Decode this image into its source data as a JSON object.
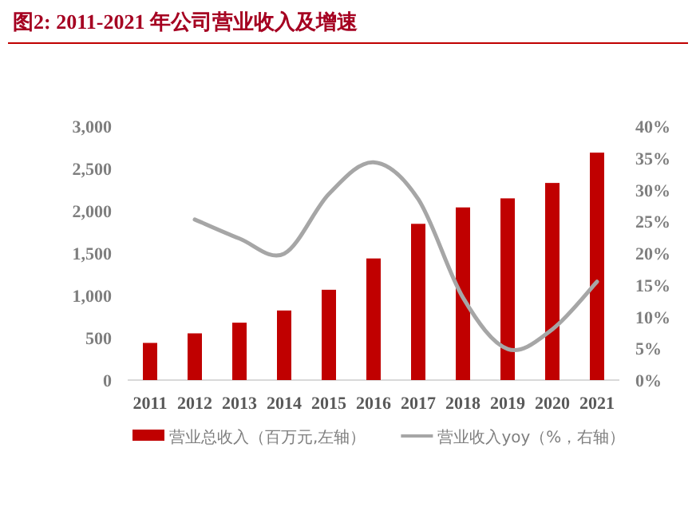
{
  "chart_data": {
    "type": "bar",
    "title": "图2:    2011-2021 年公司营业收入及增速",
    "categories": [
      "2011",
      "2012",
      "2013",
      "2014",
      "2015",
      "2016",
      "2017",
      "2018",
      "2019",
      "2020",
      "2021"
    ],
    "series": [
      {
        "name": "营业总收入（百万元,左轴）",
        "color": "#c00000",
        "values": [
          439,
          552,
          678,
          822,
          1067,
          1437,
          1846,
          2040,
          2147,
          2329,
          2687
        ]
      },
      {
        "name": "营业收入yoy（%，右轴）",
        "type": "line",
        "axis": "y2",
        "color": "#a6a6a6",
        "values": [
          null,
          25.3,
          22.3,
          19.9,
          29.3,
          34.3,
          28.5,
          13.0,
          4.9,
          8.0,
          15.5
        ]
      }
    ],
    "ylim": [
      0,
      3000
    ],
    "yticks": [
      0,
      500,
      {
        "value": 1000,
        "label": "1,000"
      },
      {
        "value": 1500,
        "label": "1,500"
      },
      {
        "value": 2000,
        "label": "2,000"
      },
      {
        "value": 2500,
        "label": "2,500"
      },
      {
        "value": 3000,
        "label": "3,000"
      }
    ],
    "y2lim": [
      0,
      40
    ],
    "y2ticks": [
      {
        "value": 0,
        "label": "0%"
      },
      {
        "value": 5,
        "label": "5%"
      },
      {
        "value": 10,
        "label": "10%"
      },
      {
        "value": 15,
        "label": "15%"
      },
      {
        "value": 20,
        "label": "20%"
      },
      {
        "value": 25,
        "label": "25%"
      },
      {
        "value": 30,
        "label": "30%"
      },
      {
        "value": 35,
        "label": "35%"
      },
      {
        "value": 40,
        "label": "40%"
      }
    ],
    "legend": "bottom"
  }
}
